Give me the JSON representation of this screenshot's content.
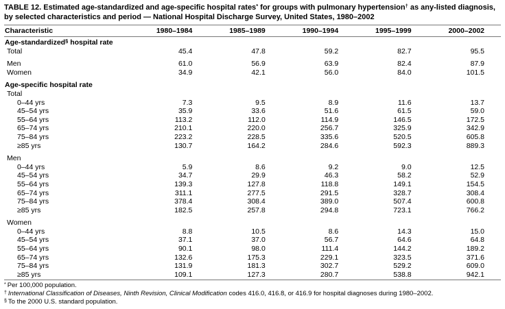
{
  "table": {
    "title": "TABLE 12. Estimated age-standardized and age-specific hospital rates* for groups with pulmonary hypertension† as any-listed diagnosis, by selected characteristics and period — National Hospital Discharge Survey, United States, 1980–2002",
    "columns": [
      "Characteristic",
      "1980–1984",
      "1985–1989",
      "1990–1994",
      "1995–1999",
      "2000–2002"
    ],
    "rows": [
      {
        "type": "section",
        "label": "Age-standardized§ hospital rate"
      },
      {
        "type": "data",
        "label": "Total",
        "indent": 0,
        "values": [
          "45.4",
          "47.8",
          "59.2",
          "82.7",
          "95.5"
        ]
      },
      {
        "type": "spacer"
      },
      {
        "type": "data",
        "label": "Men",
        "indent": 0,
        "values": [
          "61.0",
          "56.9",
          "63.9",
          "82.4",
          "87.9"
        ]
      },
      {
        "type": "data",
        "label": "Women",
        "indent": 0,
        "values": [
          "34.9",
          "42.1",
          "56.0",
          "84.0",
          "101.5"
        ]
      },
      {
        "type": "spacer"
      },
      {
        "type": "section",
        "label": "Age-specific hospital rate"
      },
      {
        "type": "sub",
        "label": "Total"
      },
      {
        "type": "data",
        "label": "0–44 yrs",
        "indent": 1,
        "values": [
          "7.3",
          "9.5",
          "8.9",
          "11.6",
          "13.7"
        ]
      },
      {
        "type": "data",
        "label": "45–54 yrs",
        "indent": 1,
        "values": [
          "35.9",
          "33.6",
          "51.6",
          "61.5",
          "59.0"
        ]
      },
      {
        "type": "data",
        "label": "55–64 yrs",
        "indent": 1,
        "values": [
          "113.2",
          "112.0",
          "114.9",
          "146.5",
          "172.5"
        ]
      },
      {
        "type": "data",
        "label": "65–74 yrs",
        "indent": 1,
        "values": [
          "210.1",
          "220.0",
          "256.7",
          "325.9",
          "342.9"
        ]
      },
      {
        "type": "data",
        "label": "75–84 yrs",
        "indent": 1,
        "values": [
          "223.2",
          "228.5",
          "335.6",
          "520.5",
          "605.8"
        ]
      },
      {
        "type": "data",
        "label": "≥85 yrs",
        "indent": 1,
        "values": [
          "130.7",
          "164.2",
          "284.6",
          "592.3",
          "889.3"
        ]
      },
      {
        "type": "spacer"
      },
      {
        "type": "sub",
        "label": "Men"
      },
      {
        "type": "data",
        "label": "0–44 yrs",
        "indent": 1,
        "values": [
          "5.9",
          "8.6",
          "9.2",
          "9.0",
          "12.5"
        ]
      },
      {
        "type": "data",
        "label": "45–54 yrs",
        "indent": 1,
        "values": [
          "34.7",
          "29.9",
          "46.3",
          "58.2",
          "52.9"
        ]
      },
      {
        "type": "data",
        "label": "55–64 yrs",
        "indent": 1,
        "values": [
          "139.3",
          "127.8",
          "118.8",
          "149.1",
          "154.5"
        ]
      },
      {
        "type": "data",
        "label": "65–74 yrs",
        "indent": 1,
        "values": [
          "311.1",
          "277.5",
          "291.5",
          "328.7",
          "308.4"
        ]
      },
      {
        "type": "data",
        "label": "75–84 yrs",
        "indent": 1,
        "values": [
          "378.4",
          "308.4",
          "389.0",
          "507.4",
          "600.8"
        ]
      },
      {
        "type": "data",
        "label": "≥85 yrs",
        "indent": 1,
        "values": [
          "182.5",
          "257.8",
          "294.8",
          "723.1",
          "766.2"
        ]
      },
      {
        "type": "spacer"
      },
      {
        "type": "sub",
        "label": "Women"
      },
      {
        "type": "data",
        "label": "0–44 yrs",
        "indent": 1,
        "values": [
          "8.8",
          "10.5",
          "8.6",
          "14.3",
          "15.0"
        ]
      },
      {
        "type": "data",
        "label": "45–54 yrs",
        "indent": 1,
        "values": [
          "37.1",
          "37.0",
          "56.7",
          "64.6",
          "64.8"
        ]
      },
      {
        "type": "data",
        "label": "55–64 yrs",
        "indent": 1,
        "values": [
          "90.1",
          "98.0",
          "111.4",
          "144.2",
          "189.2"
        ]
      },
      {
        "type": "data",
        "label": "65–74 yrs",
        "indent": 1,
        "values": [
          "132.6",
          "175.3",
          "229.1",
          "323.5",
          "371.6"
        ]
      },
      {
        "type": "data",
        "label": "75–84 yrs",
        "indent": 1,
        "values": [
          "131.9",
          "181.3",
          "302.7",
          "529.2",
          "609.0"
        ]
      },
      {
        "type": "data",
        "label": "≥85 yrs",
        "indent": 1,
        "values": [
          "109.1",
          "127.3",
          "280.7",
          "538.8",
          "942.1"
        ]
      }
    ]
  },
  "footnotes": {
    "fn1": {
      "marker": "*",
      "text": "Per 100,000 population."
    },
    "fn2": {
      "marker": "†",
      "italic": "International Classification of Diseases, Ninth Revision, Clinical Modification",
      "rest": " codes 416.0, 416.8, or 416.9 for hospital diagnoses during 1980–2002."
    },
    "fn3": {
      "marker": "§",
      "text": "To the 2000 U.S. standard population."
    }
  }
}
